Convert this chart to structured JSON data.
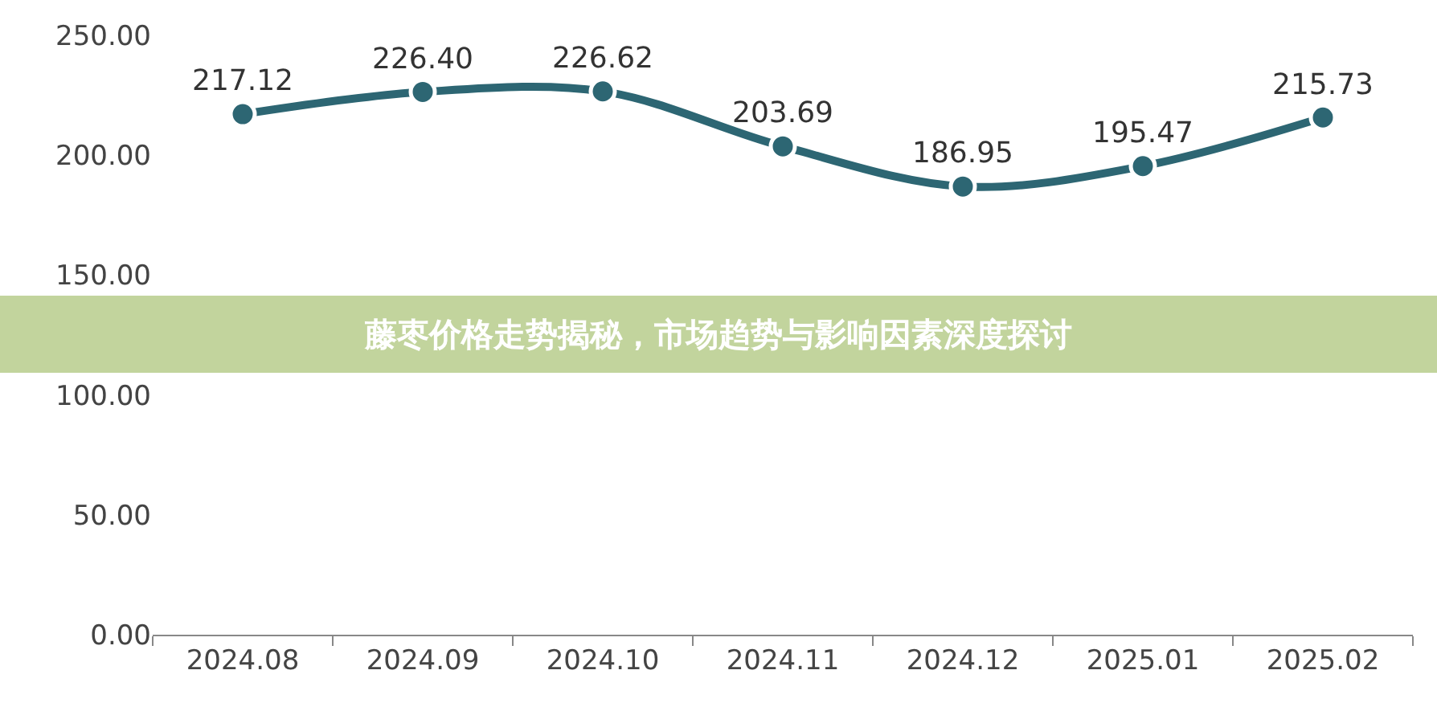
{
  "chart_data": {
    "type": "line",
    "title": "藤枣价格走势揭秘，市场趋势与影响因素深度探讨",
    "categories": [
      "2024.08",
      "2024.09",
      "2024.10",
      "2024.11",
      "2024.12",
      "2025.01",
      "2025.02"
    ],
    "series": [
      {
        "color": "#2d6673",
        "values": [
          217.12,
          226.4,
          226.62,
          203.69,
          186.95,
          195.47,
          215.73
        ],
        "value_labels": [
          "217.12",
          "226.40",
          "226.62",
          "203.69",
          "186.95",
          "195.47",
          "215.73"
        ]
      }
    ],
    "ylim": [
      0,
      250
    ],
    "yticks": [
      {
        "value": 0,
        "label": "0.00"
      },
      {
        "value": 50,
        "label": "50.00"
      },
      {
        "value": 100,
        "label": "100.00"
      },
      {
        "value": 150,
        "label": "150.00"
      },
      {
        "value": 200,
        "label": "200.00"
      },
      {
        "value": 250,
        "label": "250.00"
      }
    ],
    "marker": "circle",
    "line_style": "solid"
  }
}
